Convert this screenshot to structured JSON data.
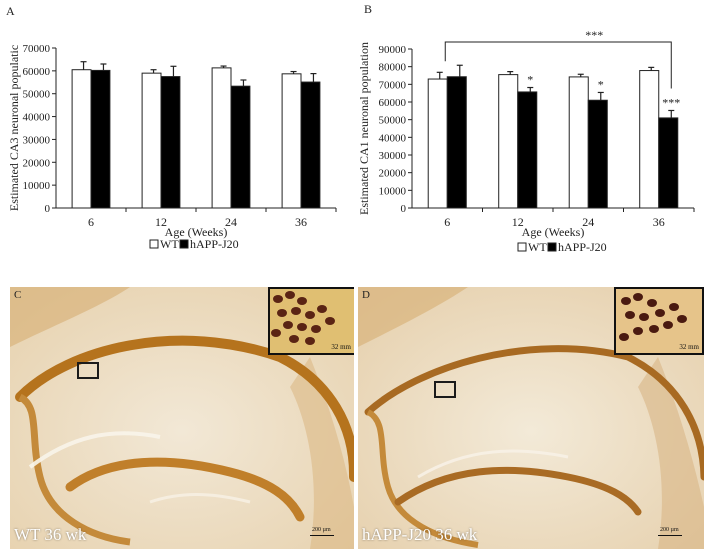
{
  "panels": {
    "a": "A",
    "b": "B",
    "c": "C",
    "d": "D"
  },
  "chart_data": [
    {
      "type": "bar",
      "title": "",
      "xlabel": "Age (Weeks)",
      "ylabel": "Estimated CA3 neuronal populatic",
      "categories": [
        "6",
        "12",
        "24",
        "36"
      ],
      "ylim": [
        0,
        70000
      ],
      "yticks": [
        0,
        10000,
        20000,
        30000,
        40000,
        50000,
        60000,
        70000
      ],
      "grid": false,
      "legend_position": "bottom-center",
      "series": [
        {
          "name": "WT",
          "color": "#ffffff",
          "values": [
            60500,
            59000,
            61300,
            58700
          ],
          "errors": [
            3500,
            1500,
            800,
            1000
          ]
        },
        {
          "name": "hAPP-J20",
          "color": "#000000",
          "values": [
            60200,
            57500,
            53300,
            55100
          ],
          "errors": [
            2800,
            4500,
            2700,
            3700
          ]
        }
      ],
      "annotations": []
    },
    {
      "type": "bar",
      "title": "",
      "xlabel": "Age (Weeks)",
      "ylabel": "Estimated CA1 neuronal population",
      "categories": [
        "6",
        "12",
        "24",
        "36"
      ],
      "ylim": [
        0,
        90000
      ],
      "yticks": [
        0,
        10000,
        20000,
        30000,
        40000,
        50000,
        60000,
        70000,
        80000,
        90000
      ],
      "grid": false,
      "legend_position": "bottom-center",
      "series": [
        {
          "name": "WT",
          "color": "#ffffff",
          "values": [
            73000,
            75500,
            74200,
            77800
          ],
          "errors": [
            3800,
            1700,
            1500,
            1800
          ]
        },
        {
          "name": "hAPP-J20",
          "color": "#000000",
          "values": [
            74300,
            65700,
            61000,
            51000
          ],
          "errors": [
            6500,
            2500,
            4400,
            4200
          ]
        }
      ],
      "annotations": [
        {
          "category": "12",
          "series": "hAPP-J20",
          "text": "*"
        },
        {
          "category": "24",
          "series": "hAPP-J20",
          "text": "*"
        },
        {
          "category": "36",
          "series": "hAPP-J20",
          "text": "***"
        },
        {
          "type": "bracket",
          "from_category": "6",
          "to_category": "36",
          "text": "***"
        }
      ]
    }
  ],
  "micrographs": [
    {
      "caption": "WT 36 wk",
      "scale": "200 µm",
      "inset_scale": "32 mm"
    },
    {
      "caption": "hAPP-J20 36 wk",
      "scale": "200 µm",
      "inset_scale": "32 mm"
    }
  ],
  "colors": {
    "stain_background": "#efe3cc",
    "stain_layer": "#b5731d",
    "inset_cells": "#5a2414"
  }
}
